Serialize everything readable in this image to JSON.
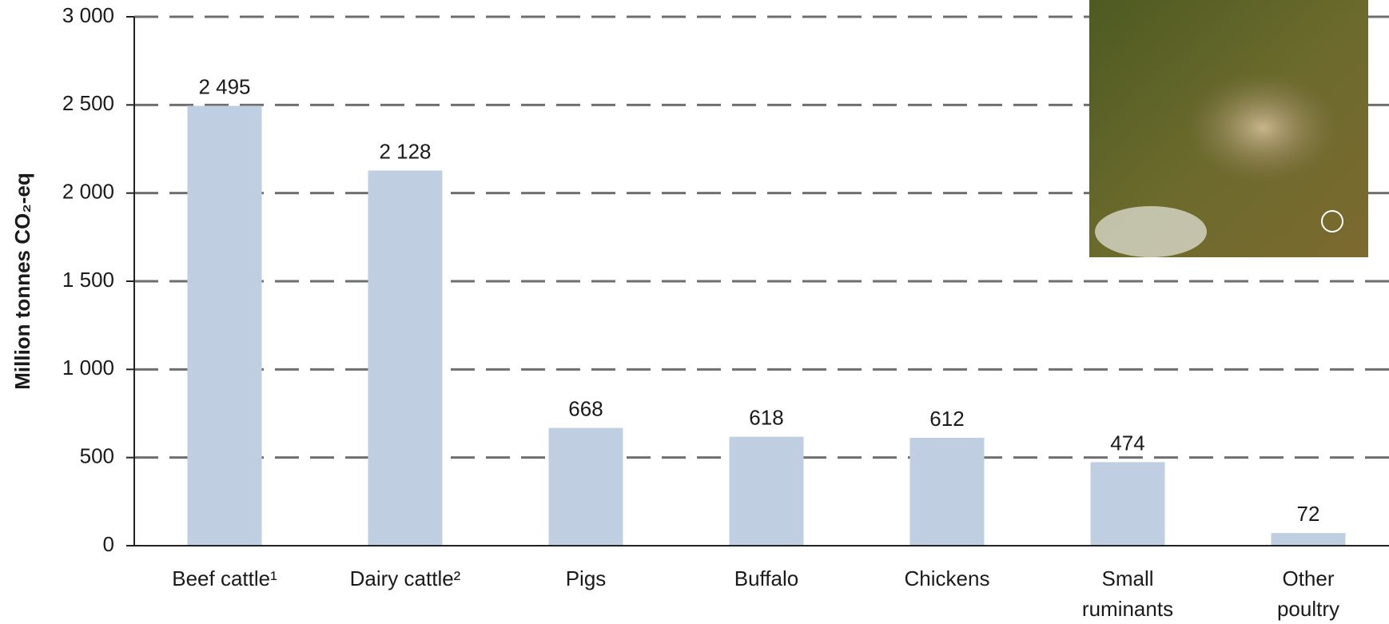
{
  "chart_data": {
    "type": "bar",
    "y_label": "Million tonnes CO₂-eq",
    "categories": [
      "Beef cattle¹",
      "Dairy cattle²",
      "Pigs",
      "Buffalo",
      "Chickens",
      "Small\nruminants",
      "Other\npoultry"
    ],
    "values": [
      2495,
      2128,
      668,
      618,
      612,
      474,
      72
    ],
    "value_labels": [
      "2 495",
      "2 128",
      "668",
      "618",
      "612",
      "474",
      "72"
    ],
    "color": "#bfcfe1",
    "ylim": [
      0,
      3000
    ],
    "yticks": [
      0,
      500,
      {
        "value": 1000,
        "label": "1 000"
      },
      {
        "value": 1500,
        "label": "1 500"
      },
      {
        "value": 2000,
        "label": "2 000"
      },
      {
        "value": 2500,
        "label": "2 500"
      },
      {
        "value": 3000,
        "label": "3 000"
      }
    ],
    "grid": true
  }
}
